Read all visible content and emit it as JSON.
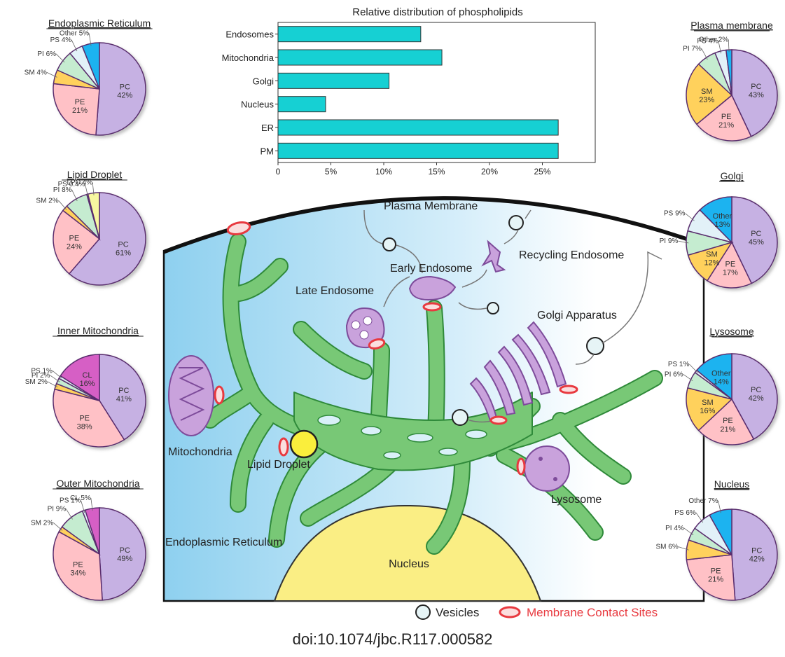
{
  "pies": [
    {
      "title": "Endoplasmic Reticulum",
      "slices": [
        {
          "lipid": "PC",
          "value": 42
        },
        {
          "lipid": "PE",
          "value": 21
        },
        {
          "lipid": "SM",
          "value": 4
        },
        {
          "lipid": "PI",
          "value": 6
        },
        {
          "lipid": "PS",
          "value": 4
        },
        {
          "lipid": "Other",
          "value": 5
        }
      ]
    },
    {
      "title": "Lipid Droplet",
      "slices": [
        {
          "lipid": "PC",
          "value": 61
        },
        {
          "lipid": "PE",
          "value": 24
        },
        {
          "lipid": "SM",
          "value": 2
        },
        {
          "lipid": "PI",
          "value": 8
        },
        {
          "lipid": "PS",
          "value": 0.4
        },
        {
          "lipid": "LPC",
          "value": 4
        }
      ]
    },
    {
      "title": "Inner Mitochondria",
      "slices": [
        {
          "lipid": "PC",
          "value": 41
        },
        {
          "lipid": "PE",
          "value": 38
        },
        {
          "lipid": "SM",
          "value": 2
        },
        {
          "lipid": "PI",
          "value": 2
        },
        {
          "lipid": "PS",
          "value": 1
        },
        {
          "lipid": "CL",
          "value": 16
        }
      ]
    },
    {
      "title": "Outer Mitochondria",
      "slices": [
        {
          "lipid": "PC",
          "value": 49
        },
        {
          "lipid": "PE",
          "value": 34
        },
        {
          "lipid": "SM",
          "value": 2
        },
        {
          "lipid": "PI",
          "value": 9
        },
        {
          "lipid": "PS",
          "value": 1
        },
        {
          "lipid": "CL",
          "value": 5
        }
      ]
    },
    {
      "title": "Plasma membrane",
      "slices": [
        {
          "lipid": "PC",
          "value": 43
        },
        {
          "lipid": "PE",
          "value": 21
        },
        {
          "lipid": "SM",
          "value": 23
        },
        {
          "lipid": "PI",
          "value": 7
        },
        {
          "lipid": "PS",
          "value": 4
        },
        {
          "lipid": "Other",
          "value": 2
        }
      ]
    },
    {
      "title": "Golgi",
      "slices": [
        {
          "lipid": "PC",
          "value": 45
        },
        {
          "lipid": "PE",
          "value": 17
        },
        {
          "lipid": "SM",
          "value": 12
        },
        {
          "lipid": "PI",
          "value": 9
        },
        {
          "lipid": "PS",
          "value": 9
        },
        {
          "lipid": "Other",
          "value": 13
        }
      ]
    },
    {
      "title": "Lysosome",
      "slices": [
        {
          "lipid": "PC",
          "value": 42
        },
        {
          "lipid": "PE",
          "value": 21
        },
        {
          "lipid": "SM",
          "value": 16
        },
        {
          "lipid": "PI",
          "value": 6
        },
        {
          "lipid": "PS",
          "value": 1
        },
        {
          "lipid": "Other",
          "value": 14
        }
      ]
    },
    {
      "title": "Nucleus",
      "slices": [
        {
          "lipid": "PC",
          "value": 42
        },
        {
          "lipid": "PE",
          "value": 21
        },
        {
          "lipid": "SM",
          "value": 6
        },
        {
          "lipid": "PI",
          "value": 4
        },
        {
          "lipid": "PS",
          "value": 6
        },
        {
          "lipid": "Other",
          "value": 7
        }
      ]
    }
  ],
  "colors": {
    "PC": "#c6b1e3",
    "PE": "#ffc1c6",
    "SM": "#ffd15c",
    "PI": "#c5ecd0",
    "PS": "#e2f1f8",
    "Other": "#1ab3f0",
    "CL": "#d65ec5",
    "LPC": "#f8f7a0",
    "bar": "#16d0d3",
    "er": "#78c876",
    "er_stroke": "#2f8a3a",
    "organelle": "#c9a2dc",
    "contact": "#e8393f",
    "nucleus": "#faee84"
  },
  "bar_chart": {
    "title": "Relative distribution of phospholipids",
    "categories": [
      "Endosomes",
      "Mitochondria",
      "Golgi",
      "Nucleus",
      "ER",
      "PM"
    ],
    "values": [
      13.5,
      15.5,
      10.5,
      4.5,
      26.5,
      26.5
    ],
    "ticks": [
      "0",
      "5%",
      "10%",
      "15%",
      "20%",
      "25%"
    ],
    "tick_values": [
      0,
      5,
      10,
      15,
      20,
      25
    ],
    "xlim": [
      0,
      30
    ]
  },
  "diagram": {
    "labels": {
      "plasma_membrane": "Plasma Membrane",
      "early_endosome": "Early Endosome",
      "recycling_endosome": "Recycling Endosome",
      "late_endosome": "Late Endosome",
      "golgi_apparatus": "Golgi Apparatus",
      "mitochondria": "Mitochondria",
      "lipid_droplet": "Lipid Droplet",
      "lysosome": "Lysosome",
      "endoplasmic_reticulum": "Endoplasmic Reticulum",
      "nucleus": "Nucleus"
    },
    "legend": {
      "vesicles": "Vesicles",
      "contact_sites": "Membrane Contact Sites"
    }
  },
  "doi": "doi:10.1074/jbc.R117.000582"
}
